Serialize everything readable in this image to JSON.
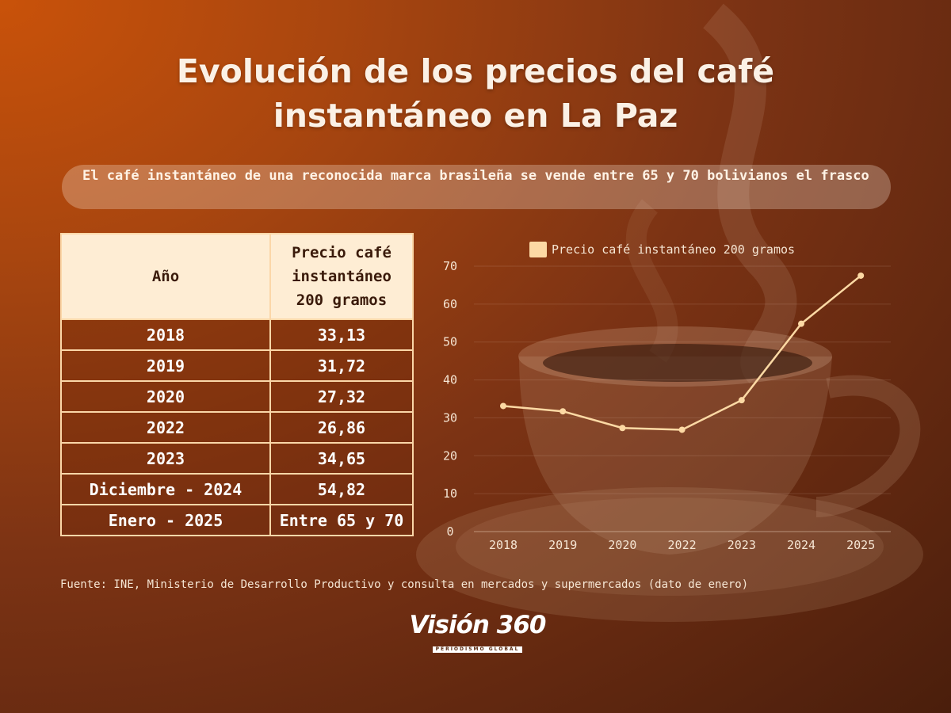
{
  "title_line1": "Evolución de los precios del café",
  "title_line2": "instantáneo en La Paz",
  "subtitle": "El café instantáneo de una reconocida marca brasileña se vende entre 65 y 70 bolivianos el frasco",
  "table": {
    "header_year": "Año",
    "header_price_line1": "Precio café",
    "header_price_line2": "instantáneo",
    "header_price_line3": "200 gramos",
    "rows": [
      {
        "year": "2018",
        "price": "33,13"
      },
      {
        "year": "2019",
        "price": "31,72"
      },
      {
        "year": "2020",
        "price": "27,32"
      },
      {
        "year": "2022",
        "price": "26,86"
      },
      {
        "year": "2023",
        "price": "34,65"
      },
      {
        "year": "Diciembre - 2024",
        "price": "54,82"
      },
      {
        "year": "Enero - 2025",
        "price": "Entre 65 y 70"
      }
    ]
  },
  "source": "Fuente: INE,  Ministerio de Desarrollo Productivo y consulta en mercados y supermercados (dato de enero)",
  "logo": {
    "text": "Visión 360",
    "tagline": "PERIODISMO GLOBAL"
  },
  "chart_data": {
    "type": "line",
    "categories": [
      "2018",
      "2019",
      "2020",
      "2022",
      "2023",
      "2024",
      "2025"
    ],
    "series": [
      {
        "name": "Precio café instantáneo 200 gramos",
        "values": [
          33.13,
          31.72,
          27.32,
          26.86,
          34.65,
          54.82,
          67.5
        ],
        "color": "#fcd9a4"
      }
    ],
    "yticks": [
      0,
      10,
      20,
      30,
      40,
      50,
      60,
      70
    ],
    "ylim": [
      0,
      70
    ],
    "grid": true,
    "legend_position": "top"
  },
  "colors": {
    "accent": "#fcd9a4",
    "table_header_bg": "#feedd4",
    "background_dark": "#4a1e0c",
    "background_light": "#c9520a"
  }
}
